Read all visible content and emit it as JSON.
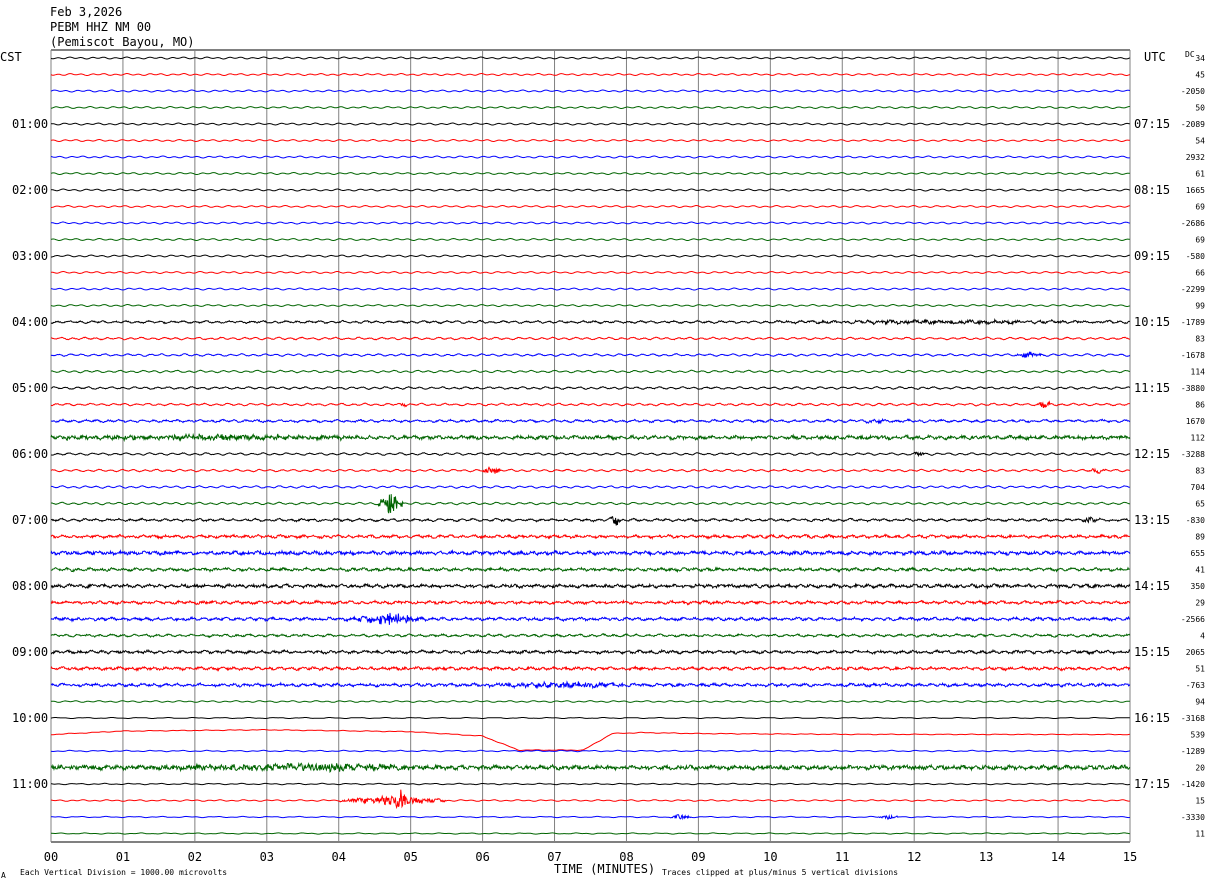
{
  "header": {
    "date": "Feb 3,2026",
    "station": "PEBM HHZ NM 00",
    "location": "(Pemiscot Bayou, MO)"
  },
  "left_zone": "CST",
  "right_zone": "UTC",
  "dc_label": "DC",
  "footer": {
    "scale_note": "Each Vertical Division = 1000.00 microvolts",
    "clip_note": "Traces clipped at plus/minus 5 vertical divisions",
    "corner_mark": "A"
  },
  "colors": {
    "black": "#000000",
    "red": "#ff0000",
    "blue": "#0000ff",
    "green": "#006400",
    "grid": "#808080"
  },
  "chart_data": {
    "type": "line",
    "title": "PEBM HHZ NM 00",
    "xlabel": "TIME (MINUTES)",
    "xlim": [
      0,
      15
    ],
    "x_ticks": [
      "00",
      "01",
      "02",
      "03",
      "04",
      "05",
      "06",
      "07",
      "08",
      "09",
      "10",
      "11",
      "12",
      "13",
      "14",
      "15"
    ],
    "trace_minutes": 15,
    "trace_count": 48,
    "trace_colors_cycle": [
      "black",
      "red",
      "blue",
      "green"
    ],
    "left_hour_labels": [
      {
        "trace": 4,
        "label": "01:00"
      },
      {
        "trace": 8,
        "label": "02:00"
      },
      {
        "trace": 12,
        "label": "03:00"
      },
      {
        "trace": 16,
        "label": "04:00"
      },
      {
        "trace": 20,
        "label": "05:00"
      },
      {
        "trace": 24,
        "label": "06:00"
      },
      {
        "trace": 28,
        "label": "07:00"
      },
      {
        "trace": 32,
        "label": "08:00"
      },
      {
        "trace": 36,
        "label": "09:00"
      },
      {
        "trace": 40,
        "label": "10:00"
      },
      {
        "trace": 44,
        "label": "11:00"
      }
    ],
    "right_hour_labels": [
      {
        "trace": 4,
        "label": "07:15"
      },
      {
        "trace": 8,
        "label": "08:15"
      },
      {
        "trace": 12,
        "label": "09:15"
      },
      {
        "trace": 16,
        "label": "10:15"
      },
      {
        "trace": 20,
        "label": "11:15"
      },
      {
        "trace": 24,
        "label": "12:15"
      },
      {
        "trace": 28,
        "label": "13:15"
      },
      {
        "trace": 32,
        "label": "14:15"
      },
      {
        "trace": 36,
        "label": "15:15"
      },
      {
        "trace": 40,
        "label": "16:15"
      },
      {
        "trace": 44,
        "label": "17:15"
      }
    ],
    "dc_offsets": [
      "34",
      "45",
      "-2050",
      "50",
      "-2089",
      "54",
      "2932",
      "61",
      "1665",
      "69",
      "-2686",
      "69",
      "-580",
      "66",
      "-2299",
      "99",
      "-1789",
      "83",
      "-1678",
      "114",
      "-3880",
      "86",
      "1670",
      "112",
      "-3288",
      "83",
      "704",
      "65",
      "-830",
      "89",
      "655",
      "41",
      "350",
      "29",
      "-2566",
      "4",
      "2065",
      "51",
      "-763",
      "94",
      "-3168",
      "539",
      "-1289",
      "20",
      "-1420",
      "15",
      "-3330",
      "11"
    ],
    "noise_level": [
      1,
      1,
      1,
      1,
      1,
      1,
      1,
      1,
      1,
      1,
      1,
      1,
      1,
      1,
      1,
      1,
      1.8,
      1.5,
      1.4,
      1.3,
      1.5,
      1.5,
      2,
      3,
      1.4,
      1.4,
      1.3,
      1.3,
      2,
      2.5,
      3,
      2.5,
      2.8,
      2.5,
      2.5,
      2,
      2.5,
      2.5,
      2.5,
      0.8,
      0.3,
      0.5,
      0.5,
      3.5,
      0.5,
      0.7,
      0.4,
      0.4
    ],
    "events": [
      {
        "trace": 16,
        "start_min": 10.0,
        "end_min": 15.0,
        "amp_div": 0.7
      },
      {
        "trace": 18,
        "start_min": 13.4,
        "end_min": 13.8,
        "amp_div": 0.9
      },
      {
        "trace": 21,
        "start_min": 4.85,
        "end_min": 4.95,
        "amp_div": 0.8
      },
      {
        "trace": 21,
        "start_min": 13.7,
        "end_min": 13.9,
        "amp_div": 1.5
      },
      {
        "trace": 22,
        "start_min": 11.3,
        "end_min": 11.6,
        "amp_div": 0.8
      },
      {
        "trace": 23,
        "start_min": 0.0,
        "end_min": 4.5,
        "amp_div": 0.9
      },
      {
        "trace": 24,
        "start_min": 12.0,
        "end_min": 12.15,
        "amp_div": 1.0
      },
      {
        "trace": 25,
        "start_min": 6.0,
        "end_min": 6.25,
        "amp_div": 2.0
      },
      {
        "trace": 25,
        "start_min": 14.4,
        "end_min": 14.7,
        "amp_div": 0.8
      },
      {
        "trace": 27,
        "start_min": 4.55,
        "end_min": 4.9,
        "amp_div": 5.0
      },
      {
        "trace": 28,
        "start_min": 7.75,
        "end_min": 7.95,
        "amp_div": 2.2
      },
      {
        "trace": 28,
        "start_min": 14.3,
        "end_min": 14.6,
        "amp_div": 1.0
      },
      {
        "trace": 34,
        "start_min": 4.2,
        "end_min": 5.2,
        "amp_div": 2.2
      },
      {
        "trace": 38,
        "start_min": 6.0,
        "end_min": 8.0,
        "amp_div": 1.1
      },
      {
        "trace": 43,
        "start_min": 1.5,
        "end_min": 5.5,
        "amp_div": 1.3
      },
      {
        "trace": 45,
        "start_min": 4.0,
        "end_min": 5.5,
        "amp_div": 1.8
      },
      {
        "trace": 45,
        "start_min": 4.75,
        "end_min": 4.95,
        "amp_div": 3.5
      },
      {
        "trace": 46,
        "start_min": 8.6,
        "end_min": 8.9,
        "amp_div": 1.0
      },
      {
        "trace": 46,
        "start_min": 11.5,
        "end_min": 11.8,
        "amp_div": 0.8
      }
    ],
    "offscale_excursion": {
      "trace": 41,
      "note": "red trace drifts upward, goes off-scale at about 6.5 min and returns near 7.4 min, then relaxes",
      "points_min_div": [
        [
          0,
          0
        ],
        [
          1.0,
          1.1
        ],
        [
          3.0,
          1.5
        ],
        [
          5.0,
          0.9
        ],
        [
          6.0,
          -0.5
        ],
        [
          6.5,
          -5
        ],
        [
          7.4,
          -5
        ],
        [
          7.8,
          0.3
        ],
        [
          8.2,
          0.6
        ],
        [
          9.0,
          0.3
        ],
        [
          11.0,
          0.05
        ],
        [
          15.0,
          0
        ]
      ]
    }
  }
}
